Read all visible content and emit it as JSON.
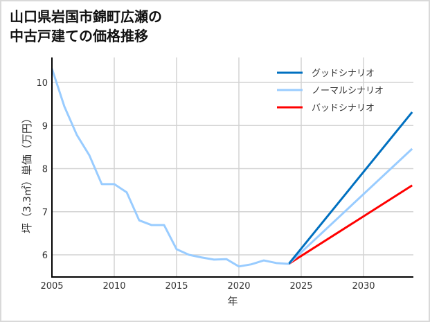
{
  "title": {
    "line1": "山口県岩国市錦町広瀬の",
    "line2": "中古戸建ての価格推移"
  },
  "colors": {
    "good": "#0070c0",
    "normal": "#99ccff",
    "bad": "#ff0000",
    "grid": "#d3d3d3",
    "axis": "#000000"
  },
  "chart_data": {
    "type": "line",
    "title": "山口県岩国市錦町広瀬の中古戸建ての価格推移",
    "xlabel": "年",
    "ylabel": "坪（3.3㎡）単価（万円）",
    "xlim": [
      2005,
      2033.9
    ],
    "ylim": [
      5.5,
      10.6
    ],
    "x_ticks": [
      2005,
      2010,
      2015,
      2020,
      2025,
      2030
    ],
    "y_ticks": [
      6,
      7,
      8,
      9,
      10
    ],
    "grid": true,
    "legend_position": "upper right",
    "series": [
      {
        "name": "ノーマルシナリオ",
        "role": "historical",
        "color": "#99ccff",
        "x": [
          2005,
          2006,
          2007,
          2008,
          2009,
          2010,
          2011,
          2012,
          2013,
          2014,
          2015,
          2016,
          2017,
          2018,
          2019,
          2020,
          2021,
          2022,
          2023,
          2024
        ],
        "values": [
          10.32,
          9.44,
          8.78,
          8.31,
          7.64,
          7.64,
          7.45,
          6.8,
          6.69,
          6.69,
          6.13,
          6.0,
          5.94,
          5.89,
          5.9,
          5.73,
          5.78,
          5.87,
          5.81,
          5.79
        ]
      },
      {
        "name": "グッドシナリオ",
        "color": "#0070c0",
        "x": [
          2024,
          2033.9
        ],
        "values": [
          5.79,
          9.31
        ]
      },
      {
        "name": "ノーマルシナリオ",
        "color": "#99ccff",
        "x": [
          2024,
          2033.9
        ],
        "values": [
          5.79,
          8.46
        ]
      },
      {
        "name": "バッドシナリオ",
        "color": "#ff0000",
        "x": [
          2024,
          2033.9
        ],
        "values": [
          5.79,
          7.61
        ]
      }
    ]
  },
  "legend": [
    {
      "label": "グッドシナリオ",
      "color": "#0070c0"
    },
    {
      "label": "ノーマルシナリオ",
      "color": "#99ccff"
    },
    {
      "label": "バッドシナリオ",
      "color": "#ff0000"
    }
  ],
  "axes": {
    "x_ticks": [
      "2005",
      "2010",
      "2015",
      "2020",
      "2025",
      "2030"
    ],
    "y_ticks": [
      "6",
      "7",
      "8",
      "9",
      "10"
    ],
    "xlabel": "年",
    "ylabel": "坪（3.3㎡）単価（万円）"
  }
}
